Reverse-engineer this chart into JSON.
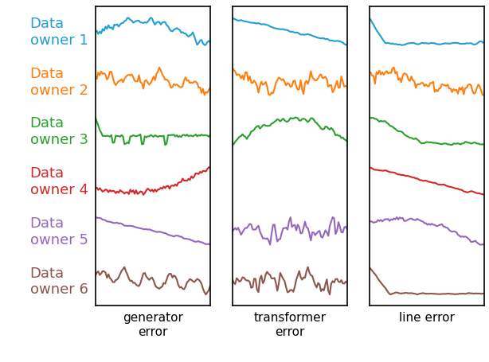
{
  "colors": [
    "#1f9fd4",
    "#ff7f0e",
    "#2ca02c",
    "#d62728",
    "#9467bd",
    "#8c564b"
  ],
  "owner_labels": [
    "Data\nowner 1",
    "Data\nowner 2",
    "Data\nowner 3",
    "Data\nowner 4",
    "Data\nowner 5",
    "Data\nowner 6"
  ],
  "col_labels": [
    "generator\nerror",
    "transformer\nerror",
    "line error"
  ],
  "label_colors": [
    "#1f9fd4",
    "#ff7f0e",
    "#2ca02c",
    "#d62728",
    "#9467bd",
    "#8c564b"
  ],
  "background": "#ffffff",
  "figsize": [
    6.14,
    4.56
  ],
  "dpi": 100,
  "label_fontsize": 13,
  "xlabel_fontsize": 11
}
